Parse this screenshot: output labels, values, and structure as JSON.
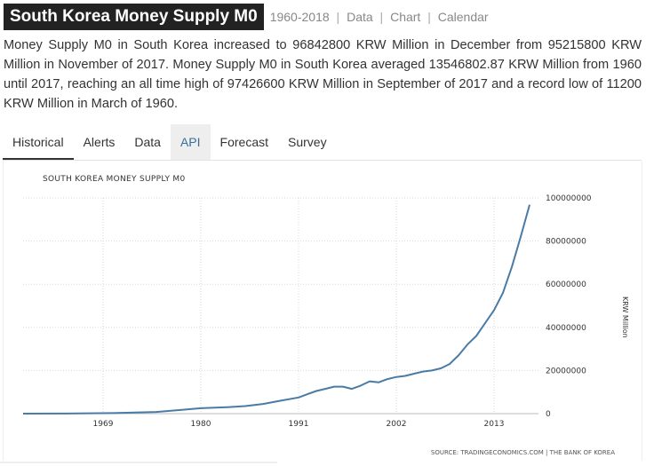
{
  "header": {
    "title": "South Korea Money Supply M0",
    "range": "1960-2018",
    "links": [
      "Data",
      "Chart",
      "Calendar"
    ]
  },
  "description": "Money Supply M0 in South Korea increased to 96842800 KRW Million in December from 95215800 KRW Million in November of 2017. Money Supply M0 in South Korea averaged 13546802.87 KRW Million from 1960 until 2017, reaching an all time high of 97426600 KRW Million in September of 2017 and a record low of 11200 KRW Million in March of 1960.",
  "tabs": [
    {
      "label": "Historical",
      "active": true
    },
    {
      "label": "Alerts"
    },
    {
      "label": "Data"
    },
    {
      "label": "API",
      "highlight": true
    },
    {
      "label": "Forecast"
    },
    {
      "label": "Survey"
    }
  ],
  "colors": {
    "line": "#4a7ba6",
    "title_bg": "#222222",
    "tab_highlight_text": "#3a6e98"
  },
  "chart_data": {
    "type": "line",
    "title": "SOUTH KOREA MONEY SUPPLY M0",
    "ylabel": "KRW Million",
    "source": "SOURCE: TRADINGECONOMICS.COM | THE BANK OF KOREA",
    "xlim": [
      1960,
      2018
    ],
    "ylim": [
      0,
      100000000
    ],
    "x_ticks": [
      1969,
      1980,
      1991,
      2002,
      2013
    ],
    "y_ticks": [
      0,
      20000000,
      40000000,
      60000000,
      80000000,
      100000000
    ],
    "y_tick_labels": [
      "0",
      "20000000",
      "40000000",
      "60000000",
      "80000000",
      "100000000"
    ],
    "grid": true,
    "series": [
      {
        "values": [
          [
            1960,
            11200
          ],
          [
            1965,
            60000
          ],
          [
            1970,
            250000
          ],
          [
            1975,
            800000
          ],
          [
            1978,
            1800000
          ],
          [
            1980,
            2500000
          ],
          [
            1983,
            3000000
          ],
          [
            1985,
            3500000
          ],
          [
            1987,
            4500000
          ],
          [
            1989,
            6000000
          ],
          [
            1991,
            7500000
          ],
          [
            1992,
            9000000
          ],
          [
            1993,
            10500000
          ],
          [
            1994,
            11500000
          ],
          [
            1995,
            12500000
          ],
          [
            1996,
            12500000
          ],
          [
            1997,
            11500000
          ],
          [
            1998,
            13000000
          ],
          [
            1999,
            15000000
          ],
          [
            2000,
            14500000
          ],
          [
            2001,
            16000000
          ],
          [
            2002,
            17000000
          ],
          [
            2003,
            17500000
          ],
          [
            2004,
            18500000
          ],
          [
            2005,
            19500000
          ],
          [
            2006,
            20000000
          ],
          [
            2007,
            21000000
          ],
          [
            2008,
            23000000
          ],
          [
            2009,
            27000000
          ],
          [
            2010,
            32000000
          ],
          [
            2011,
            36000000
          ],
          [
            2012,
            42000000
          ],
          [
            2013,
            48000000
          ],
          [
            2014,
            56000000
          ],
          [
            2015,
            68000000
          ],
          [
            2016,
            82000000
          ],
          [
            2017,
            96842800
          ]
        ]
      }
    ]
  }
}
